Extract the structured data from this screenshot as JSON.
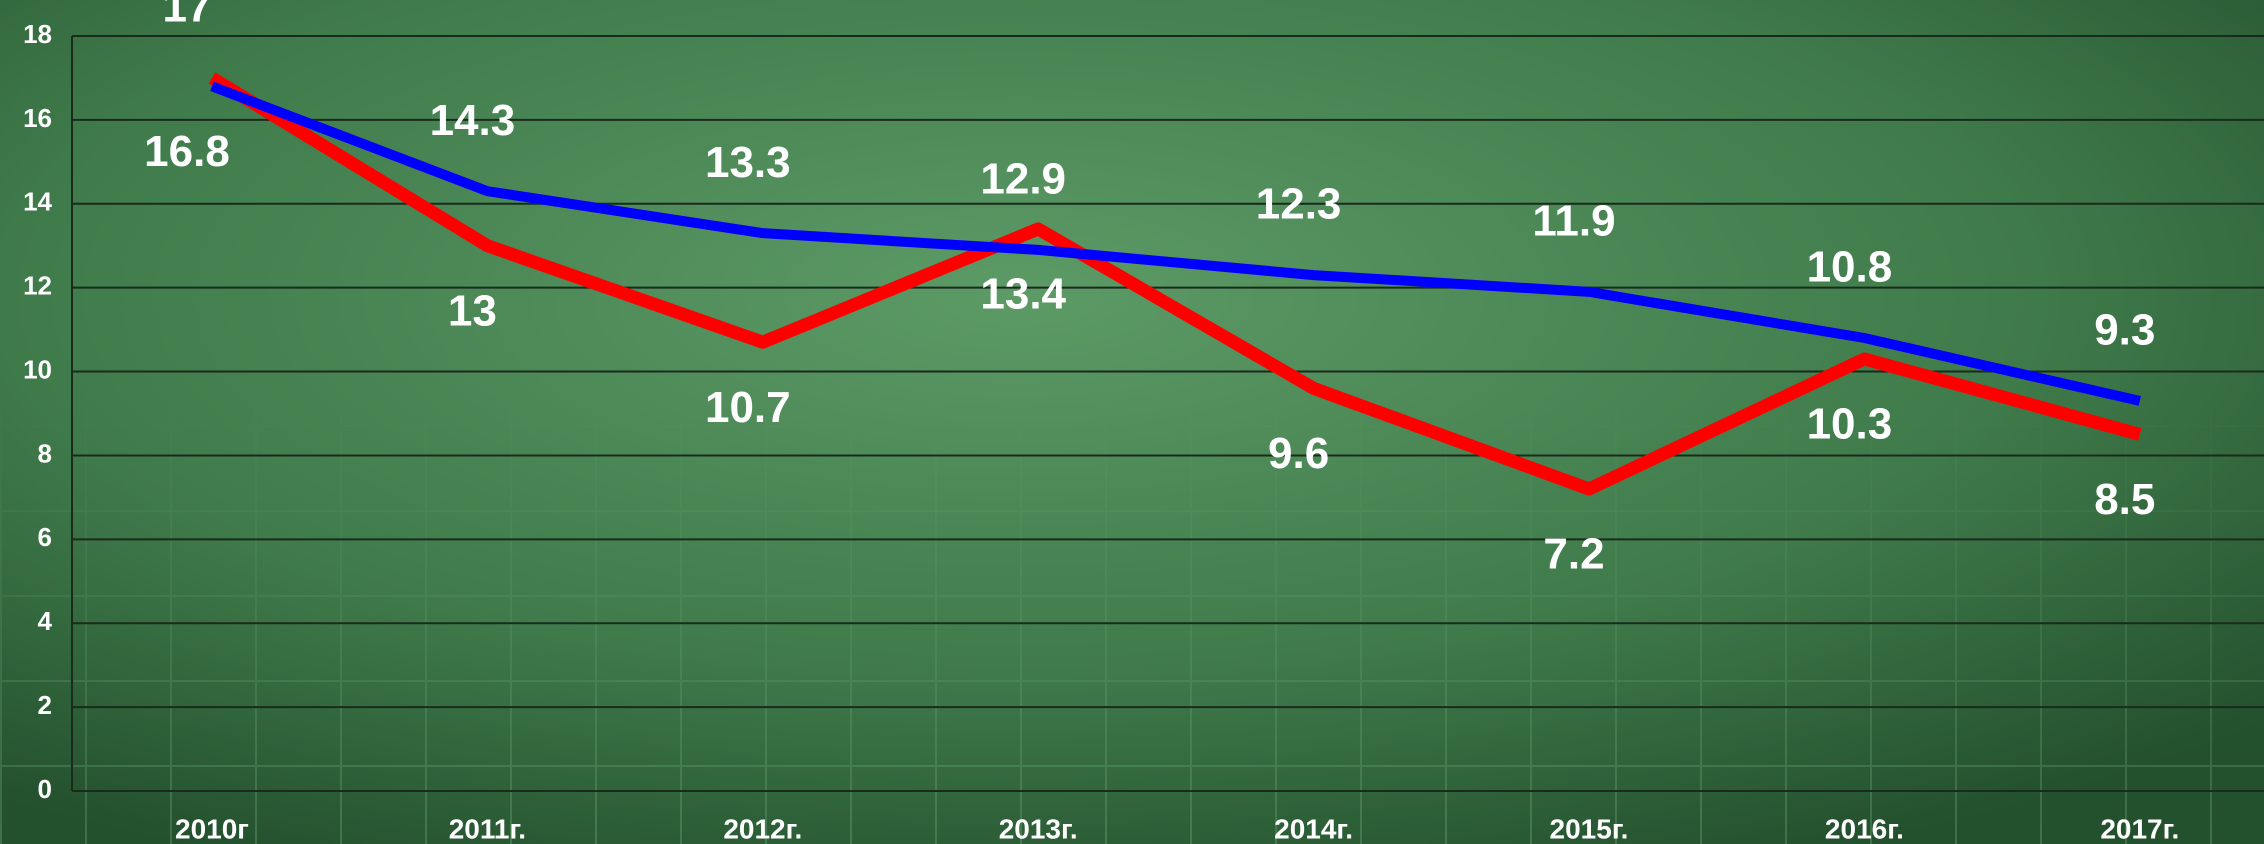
{
  "chart_data": {
    "type": "line",
    "categories": [
      "2010г",
      "2011г.",
      "2012г.",
      "2013г.",
      "2014г.",
      "2015г.",
      "2016г.",
      "2017г."
    ],
    "series": [
      {
        "color": "#ff0000",
        "values": [
          17,
          13,
          10.7,
          13.4,
          9.6,
          7.2,
          10.3,
          8.5
        ]
      },
      {
        "color": "#0000ff",
        "values": [
          16.8,
          14.3,
          13.3,
          12.9,
          12.3,
          11.9,
          10.8,
          9.3
        ]
      }
    ],
    "ylim": [
      0,
      18
    ],
    "yticks": [
      0,
      2,
      4,
      6,
      8,
      10,
      12,
      14,
      16,
      18
    ],
    "grid": true
  }
}
